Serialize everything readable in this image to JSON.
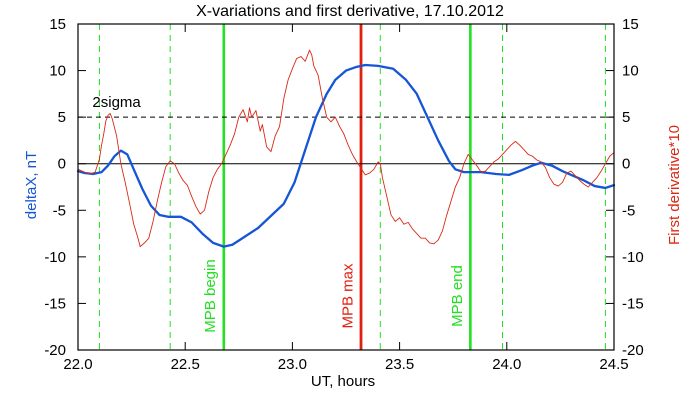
{
  "chart_data": {
    "type": "line",
    "title": "X-variations and first derivative, 17.10.2012",
    "xlabel": "UT, hours",
    "ylabel_left": "deltaX, nT",
    "ylabel_right": "First derivative*10",
    "xlim": [
      22.0,
      24.5
    ],
    "ylim": [
      -20,
      15
    ],
    "xticks": [
      {
        "value": 22.0,
        "label": "22.0"
      },
      {
        "value": 22.5,
        "label": "22.5"
      },
      {
        "value": 23.0,
        "label": "23.0"
      },
      {
        "value": 23.5,
        "label": "23.5"
      },
      {
        "value": 24.0,
        "label": "24.0"
      },
      {
        "value": 24.5,
        "label": "24.5"
      }
    ],
    "yticks": [
      {
        "value": 15,
        "label": "15"
      },
      {
        "value": 10,
        "label": "10"
      },
      {
        "value": 5,
        "label": "5"
      },
      {
        "value": 0,
        "label": "0"
      },
      {
        "value": -5,
        "label": "-5"
      },
      {
        "value": -10,
        "label": "-10"
      },
      {
        "value": -15,
        "label": "-15"
      },
      {
        "value": -20,
        "label": "-20"
      }
    ],
    "colors": {
      "axis": "#000000",
      "title": "#000000",
      "series_blue": "#1555d6",
      "series_red": "#d92a14",
      "green_line": "#22e022",
      "red_line": "#e0200f",
      "left_label": "#1555d6",
      "right_label": "#d92a14"
    },
    "series": [
      {
        "key": "deltaX",
        "color": "#1555d6",
        "stroke_width": 2.3,
        "points": [
          [
            22.0,
            -0.8
          ],
          [
            22.03,
            -1.0
          ],
          [
            22.07,
            -1.1
          ],
          [
            22.11,
            -0.9
          ],
          [
            22.14,
            -0.2
          ],
          [
            22.17,
            0.8
          ],
          [
            22.2,
            1.4
          ],
          [
            22.23,
            1.0
          ],
          [
            22.26,
            -0.6
          ],
          [
            22.3,
            -2.7
          ],
          [
            22.34,
            -4.5
          ],
          [
            22.38,
            -5.5
          ],
          [
            22.42,
            -5.7
          ],
          [
            22.48,
            -5.7
          ],
          [
            22.53,
            -6.3
          ],
          [
            22.58,
            -7.5
          ],
          [
            22.63,
            -8.5
          ],
          [
            22.68,
            -8.9
          ],
          [
            22.72,
            -8.7
          ],
          [
            22.78,
            -7.8
          ],
          [
            22.84,
            -6.9
          ],
          [
            22.9,
            -5.6
          ],
          [
            22.96,
            -4.3
          ],
          [
            23.01,
            -2.0
          ],
          [
            23.06,
            1.5
          ],
          [
            23.11,
            5.0
          ],
          [
            23.16,
            7.5
          ],
          [
            23.2,
            9.0
          ],
          [
            23.25,
            10.0
          ],
          [
            23.3,
            10.4
          ],
          [
            23.34,
            10.6
          ],
          [
            23.4,
            10.5
          ],
          [
            23.47,
            10.2
          ],
          [
            23.53,
            9.0
          ],
          [
            23.58,
            7.5
          ],
          [
            23.63,
            5.0
          ],
          [
            23.68,
            2.5
          ],
          [
            23.73,
            0.3
          ],
          [
            23.76,
            -0.6
          ],
          [
            23.8,
            -0.9
          ],
          [
            23.88,
            -0.9
          ],
          [
            23.95,
            -1.1
          ],
          [
            24.01,
            -1.2
          ],
          [
            24.07,
            -0.7
          ],
          [
            24.12,
            -0.2
          ],
          [
            24.16,
            0.1
          ],
          [
            24.21,
            -0.2
          ],
          [
            24.26,
            -0.8
          ],
          [
            24.31,
            -1.3
          ],
          [
            24.36,
            -1.8
          ],
          [
            24.41,
            -2.4
          ],
          [
            24.46,
            -2.6
          ],
          [
            24.5,
            -2.3
          ]
        ]
      },
      {
        "key": "derivative",
        "color": "#d92a14",
        "stroke_width": 0.9,
        "points": [
          [
            22.0,
            -0.6
          ],
          [
            22.02,
            -0.8
          ],
          [
            22.04,
            -1.0
          ],
          [
            22.06,
            -1.1
          ],
          [
            22.08,
            -0.9
          ],
          [
            22.1,
            0.5
          ],
          [
            22.11,
            2.0
          ],
          [
            22.12,
            3.2
          ],
          [
            22.13,
            4.6
          ],
          [
            22.14,
            5.2
          ],
          [
            22.15,
            5.4
          ],
          [
            22.16,
            4.8
          ],
          [
            22.18,
            3.0
          ],
          [
            22.2,
            0.0
          ],
          [
            22.22,
            -2.0
          ],
          [
            22.24,
            -4.2
          ],
          [
            22.26,
            -6.5
          ],
          [
            22.28,
            -8.0
          ],
          [
            22.29,
            -8.9
          ],
          [
            22.31,
            -8.5
          ],
          [
            22.33,
            -8.0
          ],
          [
            22.35,
            -6.2
          ],
          [
            22.37,
            -4.0
          ],
          [
            22.39,
            -2.0
          ],
          [
            22.41,
            -0.3
          ],
          [
            22.43,
            0.3
          ],
          [
            22.45,
            0.0
          ],
          [
            22.47,
            -1.0
          ],
          [
            22.49,
            -1.8
          ],
          [
            22.51,
            -2.3
          ],
          [
            22.53,
            -3.5
          ],
          [
            22.55,
            -4.6
          ],
          [
            22.57,
            -5.4
          ],
          [
            22.59,
            -5.0
          ],
          [
            22.61,
            -3.0
          ],
          [
            22.63,
            -1.5
          ],
          [
            22.65,
            -0.6
          ],
          [
            22.67,
            0.0
          ],
          [
            22.69,
            1.0
          ],
          [
            22.71,
            2.0
          ],
          [
            22.73,
            3.2
          ],
          [
            22.75,
            5.0
          ],
          [
            22.77,
            5.8
          ],
          [
            22.79,
            4.5
          ],
          [
            22.8,
            6.0
          ],
          [
            22.81,
            5.0
          ],
          [
            22.83,
            5.7
          ],
          [
            22.85,
            3.5
          ],
          [
            22.86,
            4.2
          ],
          [
            22.88,
            1.8
          ],
          [
            22.9,
            1.3
          ],
          [
            22.92,
            3.0
          ],
          [
            22.94,
            4.0
          ],
          [
            22.96,
            7.0
          ],
          [
            22.98,
            9.0
          ],
          [
            23.0,
            10.2
          ],
          [
            23.02,
            11.3
          ],
          [
            23.04,
            11.5
          ],
          [
            23.06,
            11.0
          ],
          [
            23.08,
            12.2
          ],
          [
            23.09,
            11.7
          ],
          [
            23.1,
            10.5
          ],
          [
            23.12,
            9.5
          ],
          [
            23.14,
            7.0
          ],
          [
            23.16,
            5.0
          ],
          [
            23.18,
            4.5
          ],
          [
            23.2,
            5.0
          ],
          [
            23.22,
            4.0
          ],
          [
            23.24,
            3.2
          ],
          [
            23.26,
            2.0
          ],
          [
            23.28,
            1.0
          ],
          [
            23.3,
            0.2
          ],
          [
            23.32,
            -0.5
          ],
          [
            23.34,
            -1.2
          ],
          [
            23.36,
            -1.0
          ],
          [
            23.38,
            -0.6
          ],
          [
            23.4,
            0.2
          ],
          [
            23.41,
            0.0
          ],
          [
            23.42,
            -1.5
          ],
          [
            23.44,
            -3.5
          ],
          [
            23.46,
            -5.5
          ],
          [
            23.48,
            -6.2
          ],
          [
            23.5,
            -5.8
          ],
          [
            23.52,
            -6.5
          ],
          [
            23.54,
            -6.3
          ],
          [
            23.56,
            -7.0
          ],
          [
            23.58,
            -7.5
          ],
          [
            23.6,
            -8.0
          ],
          [
            23.62,
            -8.0
          ],
          [
            23.64,
            -8.5
          ],
          [
            23.66,
            -8.6
          ],
          [
            23.68,
            -8.2
          ],
          [
            23.7,
            -7.2
          ],
          [
            23.72,
            -5.5
          ],
          [
            23.74,
            -4.0
          ],
          [
            23.76,
            -2.5
          ],
          [
            23.78,
            -1.5
          ],
          [
            23.8,
            0.0
          ],
          [
            23.82,
            1.0
          ],
          [
            23.84,
            0.4
          ],
          [
            23.86,
            -0.2
          ],
          [
            23.88,
            -0.9
          ],
          [
            23.9,
            -0.8
          ],
          [
            23.92,
            -0.3
          ],
          [
            23.94,
            0.2
          ],
          [
            23.96,
            0.5
          ],
          [
            23.98,
            1.0
          ],
          [
            24.0,
            1.5
          ],
          [
            24.02,
            2.0
          ],
          [
            24.04,
            2.4
          ],
          [
            24.06,
            2.0
          ],
          [
            24.08,
            1.5
          ],
          [
            24.1,
            1.0
          ],
          [
            24.12,
            0.8
          ],
          [
            24.14,
            0.4
          ],
          [
            24.16,
            0.2
          ],
          [
            24.18,
            -0.4
          ],
          [
            24.2,
            -1.5
          ],
          [
            24.22,
            -2.2
          ],
          [
            24.24,
            -2.4
          ],
          [
            24.26,
            -2.0
          ],
          [
            24.28,
            -1.0
          ],
          [
            24.3,
            -0.8
          ],
          [
            24.32,
            -1.3
          ],
          [
            24.34,
            -1.8
          ],
          [
            24.36,
            -2.2
          ],
          [
            24.38,
            -2.5
          ],
          [
            24.4,
            -2.0
          ],
          [
            24.42,
            -1.5
          ],
          [
            24.44,
            -0.8
          ],
          [
            24.46,
            0.0
          ],
          [
            24.48,
            0.8
          ],
          [
            24.5,
            1.2
          ]
        ]
      }
    ],
    "threshold_line": {
      "value": 5,
      "label": "2sigma",
      "label_x": 22.18
    },
    "reference_lines": [
      {
        "x": 22.1,
        "color": "#22e022",
        "style": "dashed"
      },
      {
        "x": 22.43,
        "color": "#22e022",
        "style": "dashed"
      },
      {
        "x": 22.68,
        "color": "#22e022",
        "style": "solid",
        "label": "MPB begin",
        "label_x": 22.64
      },
      {
        "x": 23.32,
        "color": "#e0200f",
        "style": "solid",
        "label": "MPB max",
        "label_x": 23.28
      },
      {
        "x": 23.41,
        "color": "#22e022",
        "style": "dashed"
      },
      {
        "x": 23.83,
        "color": "#22e022",
        "style": "solid",
        "label": "MPB end",
        "label_x": 23.79
      },
      {
        "x": 23.98,
        "color": "#22e022",
        "style": "dashed"
      },
      {
        "x": 24.46,
        "color": "#22e022",
        "style": "dashed"
      }
    ],
    "zero_line": true
  }
}
